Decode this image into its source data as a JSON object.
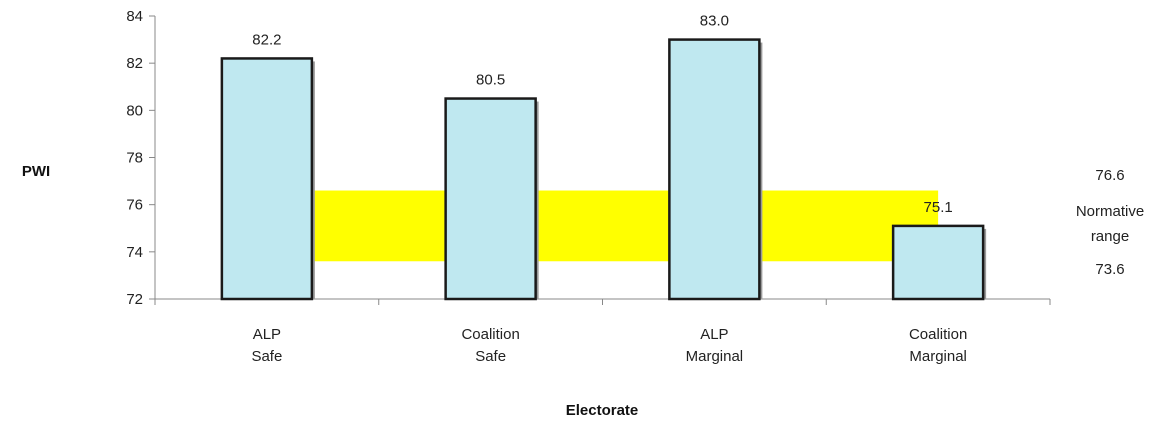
{
  "chart_data": {
    "type": "bar",
    "categories": [
      [
        "ALP",
        "Safe"
      ],
      [
        "Coalition",
        "Safe"
      ],
      [
        "ALP",
        "Marginal"
      ],
      [
        "Coalition",
        "Marginal"
      ]
    ],
    "values": [
      82.2,
      80.5,
      83.0,
      75.1
    ],
    "data_labels": [
      "82.2",
      "80.5",
      "83.0",
      "75.1"
    ],
    "xlabel": "Electorate",
    "ylabel": "PWI",
    "ylim": [
      72,
      84
    ],
    "yticks": [
      72,
      74,
      76,
      78,
      80,
      82,
      84
    ],
    "grid": false,
    "bar_color": "#bfe8f0",
    "bar_border": "#1a1a1a",
    "normative_range": {
      "low": 73.6,
      "high": 76.6,
      "low_label": "73.6",
      "high_label": "76.6",
      "label_line1": "Normative",
      "label_line2": "range",
      "color": "#ffff00"
    }
  }
}
